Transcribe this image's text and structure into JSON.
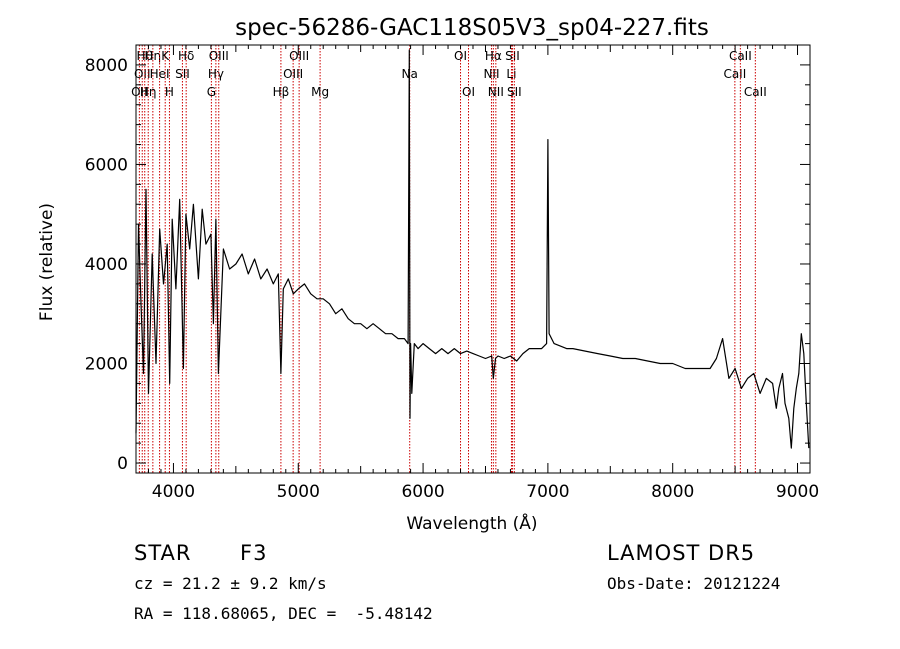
{
  "chart_data": {
    "type": "line",
    "title": "spec-56286-GAC118S05V3_sp04-227.fits",
    "xlabel": "Wavelength (Å)",
    "ylabel": "Flux (relative)",
    "xlim": [
      3700,
      9100
    ],
    "ylim": [
      -200,
      8400
    ],
    "x_ticks": [
      4000,
      5000,
      6000,
      7000,
      8000,
      9000
    ],
    "y_ticks": [
      0,
      2000,
      4000,
      6000,
      8000
    ],
    "grid": false,
    "series": [
      {
        "x": [
          3700,
          3720,
          3740,
          3760,
          3780,
          3800,
          3830,
          3860,
          3890,
          3920,
          3950,
          3970,
          3990,
          4020,
          4050,
          4080,
          4100,
          4130,
          4160,
          4200,
          4230,
          4260,
          4300,
          4320,
          4340,
          4360,
          4400,
          4450,
          4500,
          4550,
          4600,
          4650,
          4700,
          4750,
          4800,
          4840,
          4861,
          4880,
          4920,
          4960,
          5000,
          5050,
          5100,
          5150,
          5200,
          5250,
          5300,
          5350,
          5400,
          5450,
          5500,
          5550,
          5600,
          5650,
          5700,
          5750,
          5800,
          5850,
          5880,
          5890,
          5895,
          5900,
          5910,
          5930,
          5960,
          6000,
          6050,
          6100,
          6150,
          6200,
          6250,
          6300,
          6350,
          6400,
          6450,
          6500,
          6550,
          6563,
          6580,
          6600,
          6650,
          6700,
          6750,
          6800,
          6850,
          6900,
          6950,
          6990,
          7000,
          7010,
          7050,
          7100,
          7150,
          7200,
          7300,
          7400,
          7500,
          7600,
          7700,
          7800,
          7900,
          8000,
          8100,
          8200,
          8300,
          8350,
          8400,
          8450,
          8500,
          8550,
          8600,
          8650,
          8700,
          8750,
          8800,
          8830,
          8850,
          8880,
          8900,
          8930,
          8950,
          8970,
          8990,
          9010,
          9030,
          9050,
          9070,
          9090
        ],
        "y": [
          600,
          4800,
          3200,
          1800,
          5500,
          1400,
          4200,
          2000,
          4700,
          3600,
          4400,
          1600,
          4900,
          3500,
          5300,
          1900,
          5000,
          4300,
          5200,
          3700,
          5100,
          4400,
          4600,
          2800,
          4900,
          1800,
          4300,
          3900,
          4000,
          4200,
          3800,
          4100,
          3700,
          3900,
          3600,
          3800,
          1800,
          3500,
          3700,
          3400,
          3500,
          3600,
          3400,
          3300,
          3300,
          3200,
          3000,
          3100,
          2900,
          2800,
          2800,
          2700,
          2800,
          2700,
          2600,
          2600,
          2500,
          2500,
          2400,
          8300,
          900,
          2400,
          1400,
          2400,
          2300,
          2400,
          2300,
          2200,
          2300,
          2200,
          2300,
          2200,
          2250,
          2200,
          2150,
          2100,
          2150,
          1700,
          2100,
          2150,
          2100,
          2150,
          2050,
          2200,
          2300,
          2300,
          2300,
          2400,
          6500,
          2600,
          2400,
          2350,
          2300,
          2300,
          2250,
          2200,
          2150,
          2100,
          2100,
          2050,
          2000,
          2000,
          1900,
          1900,
          1900,
          2100,
          2500,
          1700,
          1900,
          1500,
          1700,
          1800,
          1400,
          1700,
          1600,
          1100,
          1500,
          1800,
          1200,
          900,
          300,
          1100,
          1500,
          1800,
          2600,
          2200,
          1200,
          300
        ]
      }
    ],
    "line_markers": [
      {
        "x": 3727,
        "label": "OII",
        "row": 2
      },
      {
        "x": 3750,
        "label": "OII",
        "row": 1
      },
      {
        "x": 3770,
        "label": "Hθ",
        "row": 0
      },
      {
        "x": 3798,
        "label": "Hη",
        "row": 2
      },
      {
        "x": 3835,
        "label": "Hη",
        "row": 0
      },
      {
        "x": 3889,
        "label": "HeI",
        "row": 1
      },
      {
        "x": 3934,
        "label": "K",
        "row": 0
      },
      {
        "x": 3968,
        "label": "H",
        "row": 2
      },
      {
        "x": 4072,
        "label": "SII",
        "row": 1
      },
      {
        "x": 4102,
        "label": "Hδ",
        "row": 0
      },
      {
        "x": 4304,
        "label": "G",
        "row": 2
      },
      {
        "x": 4340,
        "label": "Hγ",
        "row": 1
      },
      {
        "x": 4363,
        "label": "OIII",
        "row": 0
      },
      {
        "x": 4861,
        "label": "Hβ",
        "row": 2
      },
      {
        "x": 4959,
        "label": "OIII",
        "row": 1
      },
      {
        "x": 5007,
        "label": "OIII",
        "row": 0
      },
      {
        "x": 5175,
        "label": "Mg",
        "row": 2
      },
      {
        "x": 5893,
        "label": "Na",
        "row": 1
      },
      {
        "x": 6300,
        "label": "OI",
        "row": 0
      },
      {
        "x": 6364,
        "label": "OI",
        "row": 2
      },
      {
        "x": 6548,
        "label": "NII",
        "row": 1
      },
      {
        "x": 6563,
        "label": "Hα",
        "row": 0
      },
      {
        "x": 6583,
        "label": "NII",
        "row": 2
      },
      {
        "x": 6708,
        "label": "Li",
        "row": 1
      },
      {
        "x": 6716,
        "label": "SII",
        "row": 0
      },
      {
        "x": 6731,
        "label": "SII",
        "row": 2
      },
      {
        "x": 8498,
        "label": "CaII",
        "row": 1
      },
      {
        "x": 8542,
        "label": "CaII",
        "row": 0
      },
      {
        "x": 8662,
        "label": "CaII",
        "row": 2
      }
    ],
    "colors": {
      "spectrum": "#000000",
      "markers": "#cc0000",
      "frame": "#000000"
    }
  },
  "info": {
    "object_class": "STAR",
    "subclass": "F3",
    "survey": "LAMOST DR5",
    "cz_text": "cz = 21.2 ± 9.2 km/s",
    "obs_date": "Obs-Date: 20121224",
    "coords": "RA = 118.68065, DEC =  -5.48142"
  }
}
